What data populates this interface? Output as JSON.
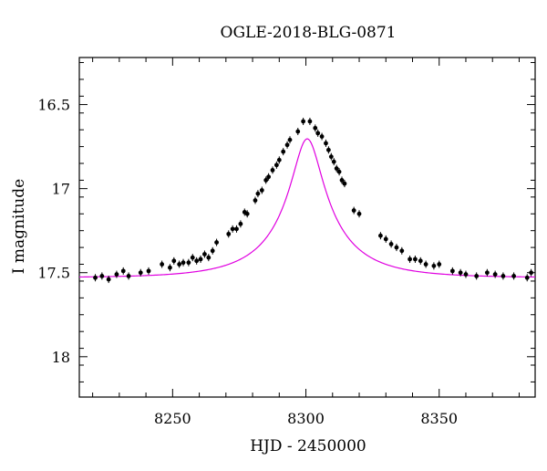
{
  "chart_data": {
    "type": "scatter",
    "title": "OGLE-2018-BLG-0871",
    "xlabel": "HJD - 2450000",
    "ylabel": "I magnitude",
    "xlim": [
      8215,
      8386
    ],
    "ylim": [
      18.24,
      16.22
    ],
    "y_inverted": true,
    "xticks": [
      8250,
      8300,
      8350
    ],
    "yticks": [
      16.5,
      17,
      17.5,
      18
    ],
    "ytick_labels": [
      "16.5",
      "17",
      "17.5",
      "18"
    ],
    "grid": false,
    "legend": "none",
    "marker_color": "#000000",
    "fit_color": "#e000e0",
    "series": [
      {
        "type": "scatter",
        "points": [
          [
            8221.0,
            17.53
          ],
          [
            8223.5,
            17.52
          ],
          [
            8226.0,
            17.54
          ],
          [
            8229.0,
            17.51
          ],
          [
            8231.5,
            17.49
          ],
          [
            8233.5,
            17.52
          ],
          [
            8238.0,
            17.5
          ],
          [
            8241.0,
            17.49
          ],
          [
            8246.0,
            17.45
          ],
          [
            8249.0,
            17.47
          ],
          [
            8250.5,
            17.43
          ],
          [
            8252.5,
            17.45
          ],
          [
            8254.0,
            17.44
          ],
          [
            8256.0,
            17.44
          ],
          [
            8257.5,
            17.41
          ],
          [
            8259.0,
            17.43
          ],
          [
            8260.5,
            17.42
          ],
          [
            8262.0,
            17.39
          ],
          [
            8263.5,
            17.41
          ],
          [
            8265.0,
            17.37
          ],
          [
            8266.5,
            17.32
          ],
          [
            8271.0,
            17.27
          ],
          [
            8272.5,
            17.24
          ],
          [
            8274.0,
            17.24
          ],
          [
            8275.5,
            17.21
          ],
          [
            8277.0,
            17.14
          ],
          [
            8278.0,
            17.15
          ],
          [
            8281.0,
            17.07
          ],
          [
            8282.0,
            17.03
          ],
          [
            8283.5,
            17.01
          ],
          [
            8285.0,
            16.95
          ],
          [
            8286.0,
            16.93
          ],
          [
            8287.5,
            16.89
          ],
          [
            8289.0,
            16.86
          ],
          [
            8290.0,
            16.83
          ],
          [
            8291.5,
            16.78
          ],
          [
            8293.0,
            16.74
          ],
          [
            8294.0,
            16.71
          ],
          [
            8297.0,
            16.66
          ],
          [
            8299.0,
            16.6
          ],
          [
            8301.5,
            16.6
          ],
          [
            8303.5,
            16.64
          ],
          [
            8304.5,
            16.67
          ],
          [
            8306.0,
            16.69
          ],
          [
            8307.5,
            16.73
          ],
          [
            8308.5,
            16.77
          ],
          [
            8309.5,
            16.81
          ],
          [
            8310.5,
            16.84
          ],
          [
            8311.5,
            16.88
          ],
          [
            8312.5,
            16.9
          ],
          [
            8313.5,
            16.95
          ],
          [
            8314.5,
            16.97
          ],
          [
            8318.0,
            17.13
          ],
          [
            8320.0,
            17.15
          ],
          [
            8328.0,
            17.28
          ],
          [
            8330.0,
            17.3
          ],
          [
            8332.0,
            17.33
          ],
          [
            8334.0,
            17.35
          ],
          [
            8336.0,
            17.37
          ],
          [
            8339.0,
            17.42
          ],
          [
            8341.0,
            17.42
          ],
          [
            8343.0,
            17.43
          ],
          [
            8345.0,
            17.45
          ],
          [
            8348.0,
            17.46
          ],
          [
            8350.0,
            17.45
          ],
          [
            8355.0,
            17.49
          ],
          [
            8358.0,
            17.5
          ],
          [
            8360.0,
            17.51
          ],
          [
            8364.0,
            17.52
          ],
          [
            8368.0,
            17.5
          ],
          [
            8371.0,
            17.51
          ],
          [
            8374.0,
            17.52
          ],
          [
            8378.0,
            17.52
          ],
          [
            8383.0,
            17.53
          ],
          [
            8384.5,
            17.5
          ]
        ]
      },
      {
        "type": "line",
        "model": {
          "t0": 8300.5,
          "tE": 27,
          "u0": 0.2,
          "fs": 0.28,
          "base_mag": 17.53
        }
      }
    ]
  }
}
